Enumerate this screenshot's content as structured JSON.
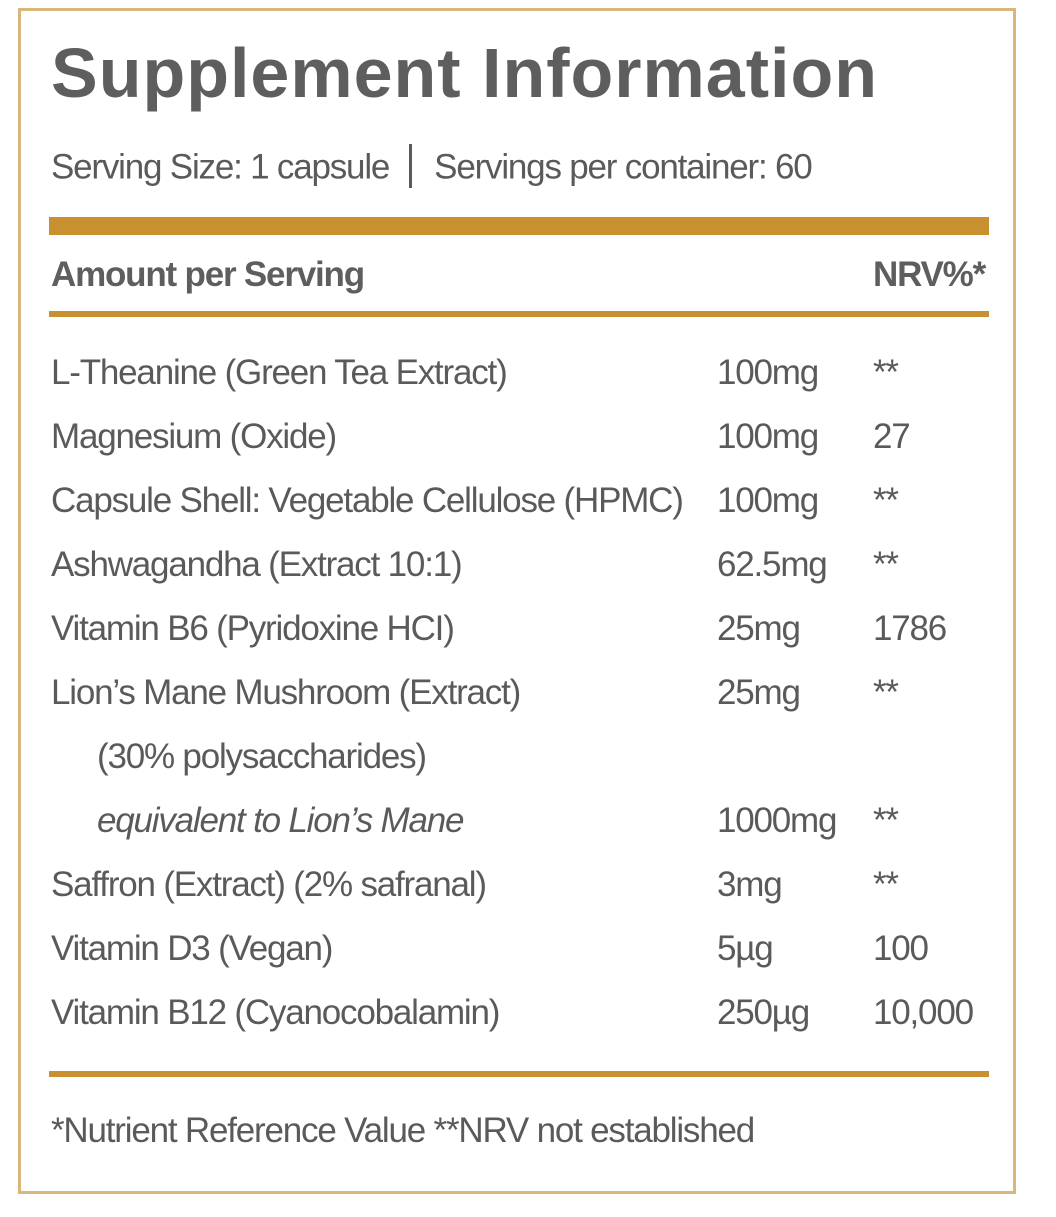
{
  "panel": {
    "title": "Supplement Information",
    "serving_size": "Serving Size: 1 capsule",
    "servings_per_container": "Servings per container: 60",
    "header": {
      "amount_label": "Amount per Serving",
      "nrv_label": "NRV%*"
    },
    "rows": [
      {
        "name": "L-Theanine (Green Tea Extract)",
        "amount": "100mg",
        "nrv": "**"
      },
      {
        "name": "Magnesium (Oxide)",
        "amount": "100mg",
        "nrv": "27"
      },
      {
        "name": "Capsule Shell: Vegetable Cellulose (HPMC)",
        "amount": "100mg",
        "nrv": "**"
      },
      {
        "name": "Ashwagandha (Extract 10:1)",
        "amount": "62.5mg",
        "nrv": "**"
      },
      {
        "name": "Vitamin B6 (Pyridoxine HCI)",
        "amount": "25mg",
        "nrv": "1786"
      },
      {
        "name": "Lion’s Mane Mushroom (Extract)",
        "amount": "25mg",
        "nrv": "**"
      },
      {
        "name": "(30% polysaccharides)",
        "amount": "",
        "nrv": ""
      },
      {
        "name": "equivalent to Lion’s Mane",
        "amount": "1000mg",
        "nrv": "**"
      },
      {
        "name": "Saffron (Extract) (2% safranal)",
        "amount": "3mg",
        "nrv": "**"
      },
      {
        "name": "Vitamin D3 (Vegan)",
        "amount": "5µg",
        "nrv": "100"
      },
      {
        "name": "Vitamin B12 (Cyanocobalamin)",
        "amount": "250µg",
        "nrv": "10,000"
      }
    ],
    "footnote": "*Nutrient Reference Value **NRV not established"
  },
  "colors": {
    "border": "#d9b77c",
    "accent_bar": "#c9902f",
    "text": "#5a5a5a"
  }
}
